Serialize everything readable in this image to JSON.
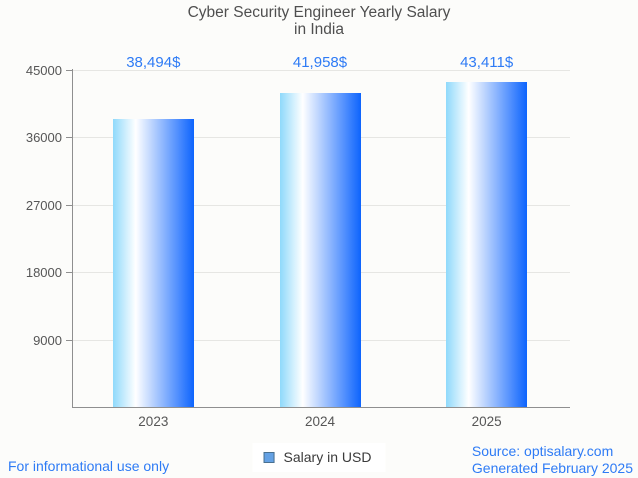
{
  "chart_data": {
    "type": "bar",
    "title": "Cyber Security Engineer Yearly Salary in India",
    "title_lines": [
      "Cyber Security Engineer Yearly Salary",
      "in India"
    ],
    "categories": [
      "2023",
      "2024",
      "2025"
    ],
    "series": [
      {
        "name": "Salary in USD",
        "values": [
          38494,
          41958,
          43411
        ]
      }
    ],
    "value_labels": [
      "38,494$",
      "41,958$",
      "43,411$"
    ],
    "xlabel": "",
    "ylabel": "",
    "ylim": [
      0,
      45000
    ],
    "yticks": [
      9000,
      18000,
      27000,
      36000,
      45000
    ],
    "grid": true,
    "legend_position": "bottom-center"
  },
  "legend": {
    "label": "Salary in USD"
  },
  "footer": {
    "left_note": "For informational use only",
    "source_line1": "Source: optisalary.com",
    "source_line2": "Generated February 2025"
  },
  "colors": {
    "background": "#fcfcfa",
    "title_gray": "#4f4f4f",
    "text_gray": "#565656",
    "axis_gray": "#8f8f8f",
    "gridline": "#e6e6e3",
    "accent_blue": "#2e7bf5",
    "bar_gradient_left": "#8fd9fb",
    "bar_gradient_mid": "#ffffff",
    "bar_gradient_right": "#0d64fd",
    "legend_marker_fill": "#64a1e4",
    "legend_marker_border": "#49708f"
  }
}
